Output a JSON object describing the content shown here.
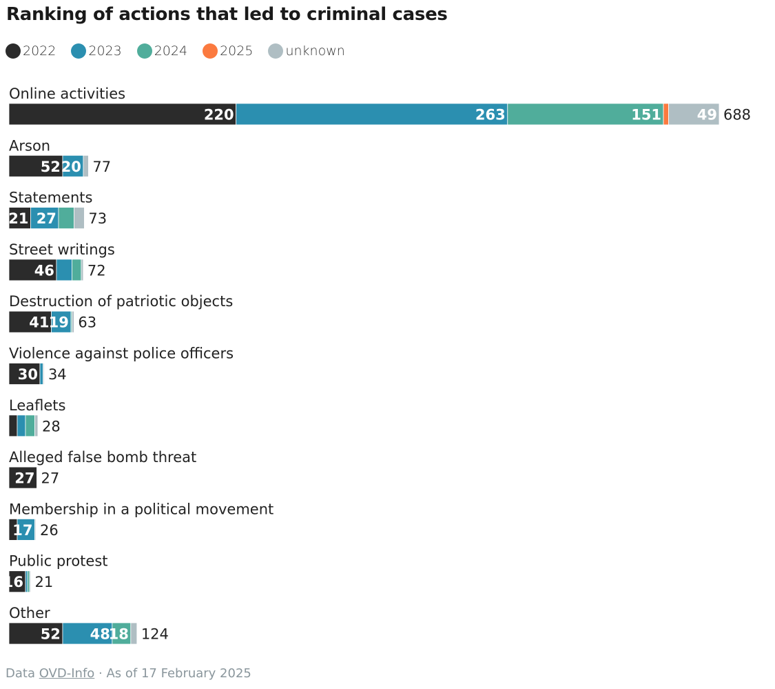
{
  "chart_data": {
    "type": "bar",
    "orientation": "horizontal",
    "stacked": true,
    "title": "Ranking of actions that led to criminal cases",
    "legend_position": "top-left",
    "grid": false,
    "series": [
      {
        "name": "2022",
        "color": "#2b2b2b"
      },
      {
        "name": "2023",
        "color": "#2b8fb0"
      },
      {
        "name": "2024",
        "color": "#50ad9b"
      },
      {
        "name": "2025",
        "color": "#fb7a3f"
      },
      {
        "name": "unknown",
        "color": "#afbec3"
      }
    ],
    "categories": [
      {
        "label": "Online activities",
        "values": [
          220,
          263,
          151,
          5,
          49
        ],
        "labels": [
          "220",
          "263",
          "151",
          "",
          "49"
        ],
        "total": "688"
      },
      {
        "label": "Arson",
        "values": [
          52,
          20,
          0,
          0,
          5
        ],
        "labels": [
          "52",
          "20",
          "",
          "",
          ""
        ],
        "total": "77"
      },
      {
        "label": "Statements",
        "values": [
          21,
          27,
          15,
          0,
          10
        ],
        "labels": [
          "21",
          "27",
          "",
          "",
          ""
        ],
        "total": "73"
      },
      {
        "label": "Street writings",
        "values": [
          46,
          15,
          9,
          0,
          2
        ],
        "labels": [
          "46",
          "",
          "",
          "",
          ""
        ],
        "total": "72"
      },
      {
        "label": "Destruction of patriotic objects",
        "values": [
          41,
          19,
          1,
          0,
          2
        ],
        "labels": [
          "41",
          "19",
          "",
          "",
          ""
        ],
        "total": "63"
      },
      {
        "label": "Violence against police officers",
        "values": [
          30,
          3,
          0,
          0,
          1
        ],
        "labels": [
          "30",
          "",
          "",
          "",
          ""
        ],
        "total": "34"
      },
      {
        "label": "Leaflets",
        "values": [
          8,
          8,
          9,
          0,
          3
        ],
        "labels": [
          "",
          "",
          "",
          "",
          ""
        ],
        "total": "28"
      },
      {
        "label": "Alleged false bomb threat",
        "values": [
          27,
          0,
          0,
          0,
          0
        ],
        "labels": [
          "27",
          "",
          "",
          "",
          ""
        ],
        "total": "27"
      },
      {
        "label": "Membership in a political movement",
        "values": [
          8,
          17,
          0,
          0,
          1
        ],
        "labels": [
          "",
          "17",
          "",
          "",
          ""
        ],
        "total": "26"
      },
      {
        "label": "Public protest",
        "values": [
          16,
          2,
          2,
          0,
          1
        ],
        "labels": [
          "16",
          "",
          "",
          "",
          ""
        ],
        "total": "21"
      },
      {
        "label": "Other",
        "values": [
          52,
          48,
          18,
          0,
          6
        ],
        "labels": [
          "52",
          "48",
          "18",
          "",
          ""
        ],
        "total": "124"
      }
    ]
  },
  "footer": {
    "prefix": "Data ",
    "source": "OVD-Info",
    "suffix": " · As of 17 February 2025"
  }
}
